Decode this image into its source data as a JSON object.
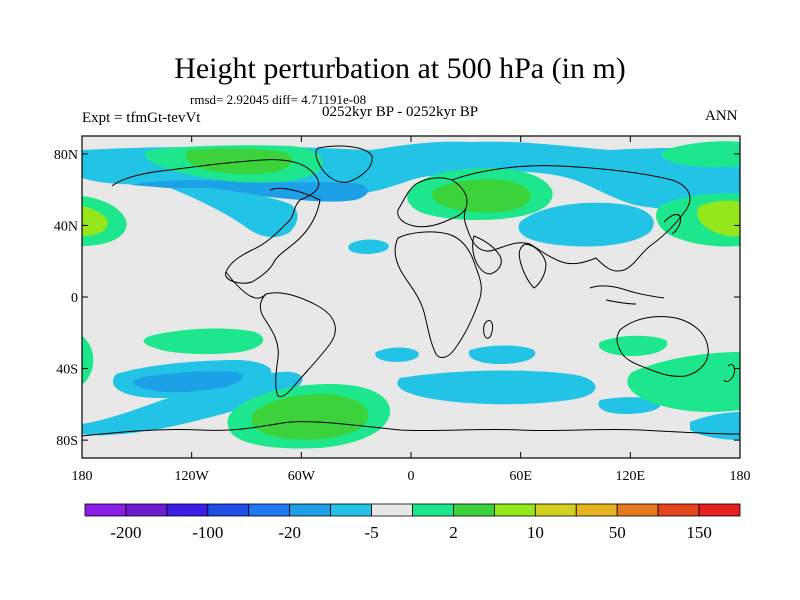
{
  "title": "Height perturbation at 500 hPa (in m)",
  "stats": "rmsd= 2.92045 diff= 4.71191e-08",
  "experiment": "Expt = tfmGt-tevVt",
  "period": "0252kyr BP - 0252kyr BP",
  "season": "ANN",
  "map": {
    "lat_ticks": [
      {
        "value": 80,
        "label": "80N"
      },
      {
        "value": 40,
        "label": "40N"
      },
      {
        "value": 0,
        "label": "0"
      },
      {
        "value": -40,
        "label": "40S"
      },
      {
        "value": -80,
        "label": "80S"
      }
    ],
    "lon_ticks": [
      {
        "value": -180,
        "label": "180"
      },
      {
        "value": -120,
        "label": "120W"
      },
      {
        "value": -60,
        "label": "60W"
      },
      {
        "value": 0,
        "label": "0"
      },
      {
        "value": 60,
        "label": "60E"
      },
      {
        "value": 120,
        "label": "120E"
      },
      {
        "value": 180,
        "label": "180"
      }
    ]
  },
  "colorbar": {
    "colors": [
      "#8b1ee6",
      "#6a1ecf",
      "#3c1ee6",
      "#1e4ee6",
      "#1e78f0",
      "#1ea0e6",
      "#23c3e6",
      "#e8e8e8",
      "#1ee68c",
      "#3cd23c",
      "#96e61e",
      "#d2d21e",
      "#e6b41e",
      "#e6781e",
      "#e6461e",
      "#e61e1e"
    ],
    "labels": [
      {
        "boundary": 1,
        "text": "-200"
      },
      {
        "boundary": 3,
        "text": "-100"
      },
      {
        "boundary": 5,
        "text": "-20"
      },
      {
        "boundary": 7,
        "text": "-5"
      },
      {
        "boundary": 9,
        "text": "2"
      },
      {
        "boundary": 11,
        "text": "10"
      },
      {
        "boundary": 13,
        "text": "50"
      },
      {
        "boundary": 15,
        "text": "150"
      }
    ]
  },
  "fill_palette": {
    "light_blue": "#23c3e6",
    "blue": "#1ea0e6",
    "green_light": "#1ee68c",
    "green": "#3cd23c",
    "yellowgreen": "#96e61e",
    "background": "#e8e8e8"
  }
}
